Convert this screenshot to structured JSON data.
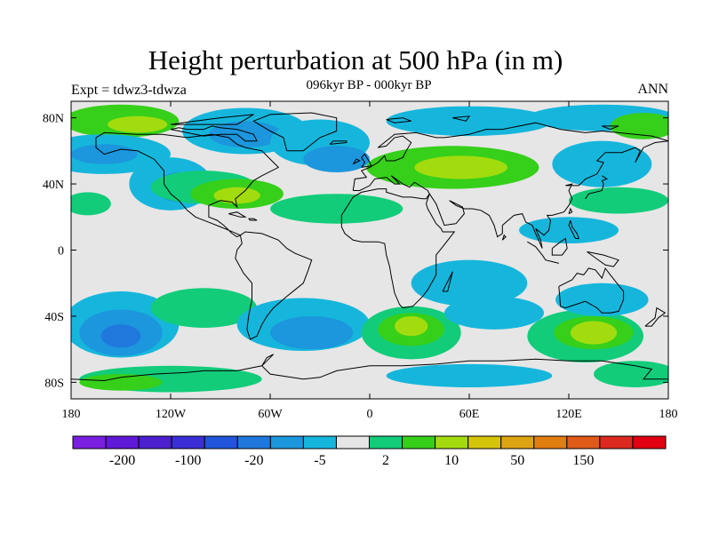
{
  "header": {
    "title": "Height perturbation at 500 hPa (in m)",
    "subtitle": "096kyr BP - 000kyr BP",
    "left_label": "Expt = tdwz3-tdwza",
    "right_label": "ANN"
  },
  "map": {
    "projection": "cylindrical-equidistant",
    "lon_range": [
      -180,
      180
    ],
    "lat_range": [
      -90,
      90
    ],
    "lat_ticks": [
      {
        "lat": 80,
        "label": "80N"
      },
      {
        "lat": 40,
        "label": "40N"
      },
      {
        "lat": 0,
        "label": "0"
      },
      {
        "lat": -40,
        "label": "40S"
      },
      {
        "lat": -80,
        "label": "80S"
      }
    ],
    "lon_ticks": [
      {
        "lon": -180,
        "label": "180"
      },
      {
        "lon": -120,
        "label": "120W"
      },
      {
        "lon": -60,
        "label": "60W"
      },
      {
        "lon": 0,
        "label": "0"
      },
      {
        "lon": 60,
        "label": "60E"
      },
      {
        "lon": 120,
        "label": "120E"
      },
      {
        "lon": 180,
        "label": "180"
      }
    ],
    "background_color": "#e6e6e6",
    "coastline_color": "#000000"
  },
  "colorbar": {
    "colors": [
      "#7a1ee0",
      "#5f19d8",
      "#4c1fcf",
      "#3a2fd6",
      "#1f56dc",
      "#2078dc",
      "#1c96dc",
      "#16b6dc",
      "#e6e6e6",
      "#12cc7a",
      "#36cf1a",
      "#a3dc0e",
      "#d4c40a",
      "#dca412",
      "#e17e10",
      "#e05a1a",
      "#dd2a20",
      "#e00010"
    ],
    "labels": [
      {
        "after_box": 2,
        "text": "-200"
      },
      {
        "after_box": 4,
        "text": "-100"
      },
      {
        "after_box": 6,
        "text": "-20"
      },
      {
        "after_box": 8,
        "text": "-5"
      },
      {
        "after_box": 10,
        "text": "2"
      },
      {
        "after_box": 12,
        "text": "10"
      },
      {
        "after_box": 14,
        "text": "50"
      },
      {
        "after_box": 16,
        "text": "150"
      }
    ]
  },
  "anomalies": [
    {
      "lon": -150,
      "lat": 78,
      "rx": 35,
      "ry": 10,
      "color": "#36cf1a"
    },
    {
      "lon": -140,
      "lat": 76,
      "rx": 18,
      "ry": 5,
      "color": "#a3dc0e"
    },
    {
      "lon": -160,
      "lat": 58,
      "rx": 40,
      "ry": 12,
      "color": "#16b6dc"
    },
    {
      "lon": -160,
      "lat": 58,
      "rx": 20,
      "ry": 6,
      "color": "#1c96dc"
    },
    {
      "lon": -120,
      "lat": 40,
      "rx": 25,
      "ry": 16,
      "color": "#16b6dc"
    },
    {
      "lon": -115,
      "lat": 38,
      "rx": 14,
      "ry": 9,
      "color": "#1c96dc"
    },
    {
      "lon": -100,
      "lat": 38,
      "rx": 32,
      "ry": 10,
      "color": "#12cc7a"
    },
    {
      "lon": -80,
      "lat": 34,
      "rx": 28,
      "ry": 9,
      "color": "#36cf1a"
    },
    {
      "lon": -80,
      "lat": 33,
      "rx": 14,
      "ry": 5,
      "color": "#a3dc0e"
    },
    {
      "lon": -75,
      "lat": 72,
      "rx": 38,
      "ry": 14,
      "color": "#16b6dc"
    },
    {
      "lon": -75,
      "lat": 70,
      "rx": 22,
      "ry": 8,
      "color": "#1c96dc"
    },
    {
      "lon": -30,
      "lat": 65,
      "rx": 30,
      "ry": 14,
      "color": "#16b6dc"
    },
    {
      "lon": -20,
      "lat": 55,
      "rx": 20,
      "ry": 8,
      "color": "#1c96dc"
    },
    {
      "lon": -20,
      "lat": 25,
      "rx": 40,
      "ry": 9,
      "color": "#12cc7a"
    },
    {
      "lon": 50,
      "lat": 50,
      "rx": 52,
      "ry": 13,
      "color": "#36cf1a"
    },
    {
      "lon": 55,
      "lat": 50,
      "rx": 28,
      "ry": 7,
      "color": "#a3dc0e"
    },
    {
      "lon": 60,
      "lat": 78,
      "rx": 50,
      "ry": 9,
      "color": "#16b6dc"
    },
    {
      "lon": 140,
      "lat": 80,
      "rx": 45,
      "ry": 8,
      "color": "#16b6dc"
    },
    {
      "lon": 165,
      "lat": 75,
      "rx": 20,
      "ry": 8,
      "color": "#36cf1a"
    },
    {
      "lon": 140,
      "lat": 52,
      "rx": 30,
      "ry": 14,
      "color": "#16b6dc"
    },
    {
      "lon": 150,
      "lat": 30,
      "rx": 30,
      "ry": 8,
      "color": "#12cc7a"
    },
    {
      "lon": 120,
      "lat": 12,
      "rx": 30,
      "ry": 8,
      "color": "#16b6dc"
    },
    {
      "lon": -170,
      "lat": 28,
      "rx": 14,
      "ry": 7,
      "color": "#12cc7a"
    },
    {
      "lon": 60,
      "lat": -20,
      "rx": 35,
      "ry": 14,
      "color": "#16b6dc"
    },
    {
      "lon": -150,
      "lat": -45,
      "rx": 35,
      "ry": 20,
      "color": "#16b6dc"
    },
    {
      "lon": -150,
      "lat": -50,
      "rx": 25,
      "ry": 14,
      "color": "#1c96dc"
    },
    {
      "lon": -150,
      "lat": -52,
      "rx": 12,
      "ry": 7,
      "color": "#2078dc"
    },
    {
      "lon": -100,
      "lat": -35,
      "rx": 32,
      "ry": 12,
      "color": "#12cc7a"
    },
    {
      "lon": -40,
      "lat": -45,
      "rx": 40,
      "ry": 16,
      "color": "#16b6dc"
    },
    {
      "lon": -35,
      "lat": -50,
      "rx": 25,
      "ry": 10,
      "color": "#1c96dc"
    },
    {
      "lon": 25,
      "lat": -50,
      "rx": 30,
      "ry": 16,
      "color": "#12cc7a"
    },
    {
      "lon": 25,
      "lat": -48,
      "rx": 20,
      "ry": 10,
      "color": "#36cf1a"
    },
    {
      "lon": 25,
      "lat": -46,
      "rx": 10,
      "ry": 6,
      "color": "#a3dc0e"
    },
    {
      "lon": 75,
      "lat": -38,
      "rx": 30,
      "ry": 10,
      "color": "#16b6dc"
    },
    {
      "lon": 130,
      "lat": -52,
      "rx": 35,
      "ry": 16,
      "color": "#12cc7a"
    },
    {
      "lon": 135,
      "lat": -50,
      "rx": 24,
      "ry": 10,
      "color": "#36cf1a"
    },
    {
      "lon": 135,
      "lat": -50,
      "rx": 14,
      "ry": 7,
      "color": "#a3dc0e"
    },
    {
      "lon": 140,
      "lat": -30,
      "rx": 28,
      "ry": 10,
      "color": "#16b6dc"
    },
    {
      "lon": -120,
      "lat": -78,
      "rx": 55,
      "ry": 8,
      "color": "#12cc7a"
    },
    {
      "lon": -150,
      "lat": -80,
      "rx": 25,
      "ry": 5,
      "color": "#36cf1a"
    },
    {
      "lon": 60,
      "lat": -76,
      "rx": 50,
      "ry": 7,
      "color": "#16b6dc"
    },
    {
      "lon": 160,
      "lat": -75,
      "rx": 25,
      "ry": 8,
      "color": "#12cc7a"
    }
  ]
}
